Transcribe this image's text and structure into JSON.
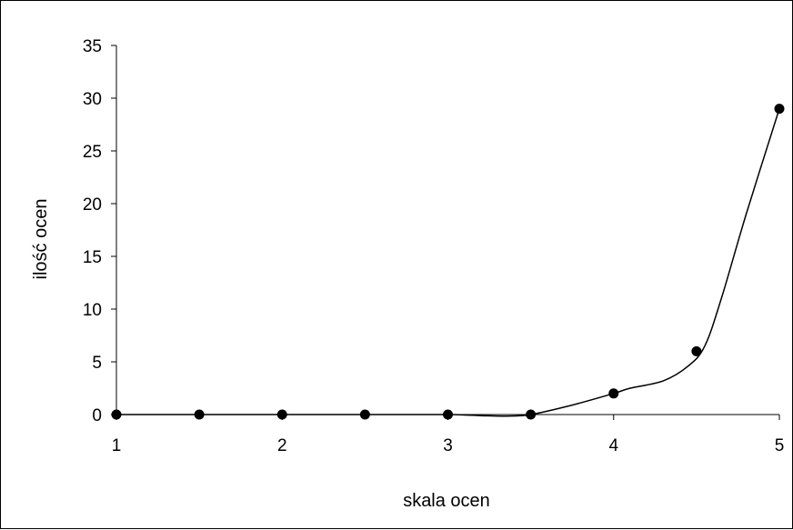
{
  "chart_data": {
    "type": "scatter",
    "xlabel": "skala ocen",
    "ylabel": "ilość ocen",
    "xlim": [
      1,
      5
    ],
    "ylim": [
      0,
      35
    ],
    "x_ticks": [
      "1",
      "2",
      "3",
      "4",
      "5"
    ],
    "y_ticks": [
      "0",
      "5",
      "10",
      "15",
      "20",
      "25",
      "30",
      "35"
    ],
    "grid": false,
    "legend": "none",
    "points": {
      "x": [
        1,
        1.5,
        2,
        2.5,
        3,
        3.5,
        4,
        4.5,
        5
      ],
      "y": [
        0,
        0,
        0,
        0,
        0,
        0,
        2,
        6,
        29
      ]
    },
    "trendline": {
      "type": "polynomial",
      "x": [
        1,
        1.5,
        2,
        2.5,
        3,
        3.2,
        3.35,
        3.5,
        3.75,
        4,
        4.1,
        4.3,
        4.45,
        4.55,
        4.65,
        4.8,
        5
      ],
      "y": [
        0,
        0,
        0,
        0,
        0,
        -0.1,
        -0.15,
        0,
        0.9,
        2,
        2.5,
        3.2,
        4.6,
        6.5,
        11,
        19,
        29
      ]
    },
    "colors": {
      "marker": "#000000",
      "line": "#000000",
      "axis": "#000000"
    }
  }
}
